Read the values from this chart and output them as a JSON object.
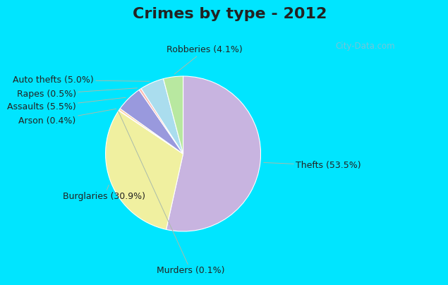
{
  "title": "Crimes by type - 2012",
  "labels": [
    "Thefts",
    "Burglaries",
    "Murders",
    "Arson",
    "Assaults",
    "Rapes",
    "Auto thefts",
    "Robberies"
  ],
  "values": [
    53.5,
    30.9,
    0.1,
    0.4,
    5.5,
    0.5,
    5.0,
    4.1
  ],
  "colors": [
    "#c8b4e0",
    "#f0f0a0",
    "#f0f0f0",
    "#ffcc99",
    "#9999dd",
    "#ffb8b0",
    "#aaddee",
    "#b8e8a0"
  ],
  "label_texts": [
    "Thefts (53.5%)",
    "Burglaries (30.9%)",
    "Murders (0.1%)",
    "Arson (0.4%)",
    "Assaults (5.5%)",
    "Rapes (0.5%)",
    "Auto thefts (5.0%)",
    "Robberies (4.1%)"
  ],
  "bg_top_color": "#00e5ff",
  "bg_main_color_tl": "#c8ece0",
  "bg_main_color_br": "#ddeedd",
  "title_fontsize": 16,
  "label_fontsize": 9,
  "title_color": "#222222",
  "label_color": "#222222",
  "line_color": "#aabbaa",
  "watermark": "City-Data.com"
}
